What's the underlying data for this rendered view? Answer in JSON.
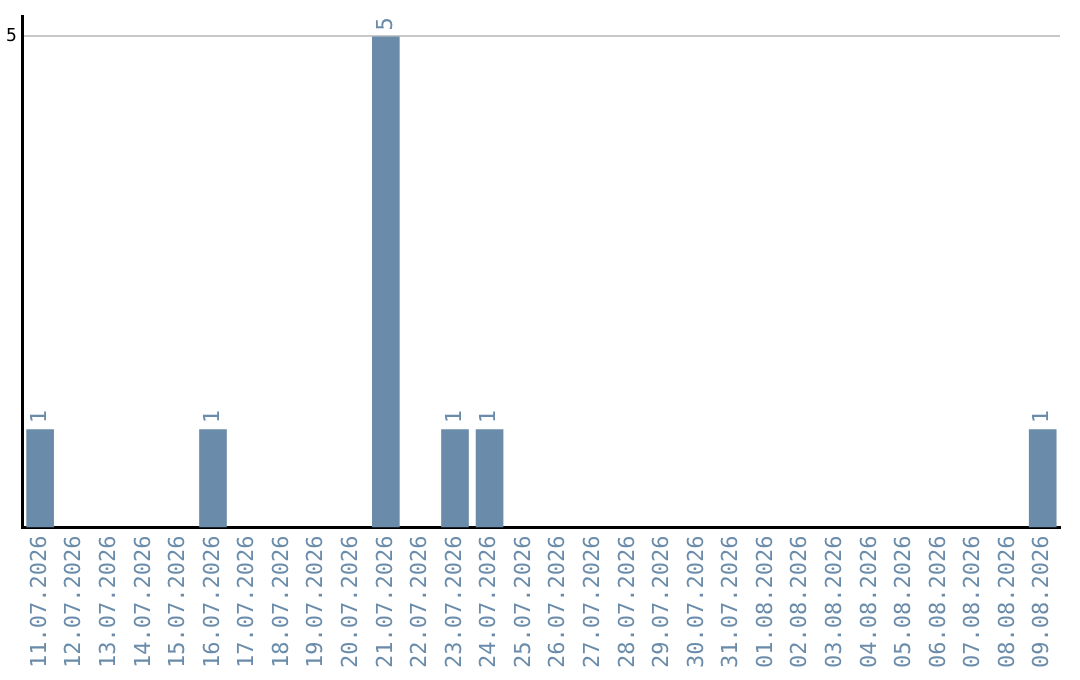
{
  "chart_data": {
    "type": "bar",
    "categories": [
      "11.07.2026",
      "12.07.2026",
      "13.07.2026",
      "14.07.2026",
      "15.07.2026",
      "16.07.2026",
      "17.07.2026",
      "18.07.2026",
      "19.07.2026",
      "20.07.2026",
      "21.07.2026",
      "22.07.2026",
      "23.07.2026",
      "24.07.2026",
      "25.07.2026",
      "26.07.2026",
      "27.07.2026",
      "28.07.2026",
      "29.07.2026",
      "30.07.2026",
      "31.07.2026",
      "01.08.2026",
      "02.08.2026",
      "03.08.2026",
      "04.08.2026",
      "05.08.2026",
      "06.08.2026",
      "07.08.2026",
      "08.08.2026",
      "09.08.2026"
    ],
    "values": [
      1,
      0,
      0,
      0,
      0,
      1,
      0,
      0,
      0,
      0,
      5,
      0,
      1,
      1,
      0,
      0,
      0,
      0,
      0,
      0,
      0,
      0,
      0,
      0,
      0,
      0,
      0,
      0,
      0,
      1
    ],
    "value_labels": [
      "1",
      null,
      null,
      null,
      null,
      "1",
      null,
      null,
      null,
      null,
      "5",
      null,
      "1",
      "1",
      null,
      null,
      null,
      null,
      null,
      null,
      null,
      null,
      null,
      null,
      null,
      null,
      null,
      null,
      null,
      "1"
    ],
    "color": "#6a8caa",
    "ylim": [
      0,
      5.2
    ],
    "yticks": [
      5
    ],
    "grid": "y",
    "legend": false
  }
}
